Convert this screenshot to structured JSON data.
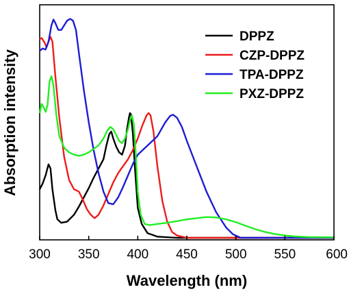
{
  "chart_data": {
    "type": "line",
    "title": "",
    "xlabel": "Wavelength (nm)",
    "ylabel": "Absorption intensity",
    "xlim": [
      300,
      600
    ],
    "ylim": [
      0,
      1
    ],
    "x_ticks": [
      300,
      350,
      400,
      450,
      500,
      550,
      600
    ],
    "y_ticks_shown": false,
    "grid": false,
    "legend_position": "top-right",
    "series": [
      {
        "name": "DPPZ",
        "color": "#000000",
        "points": [
          [
            300,
            0.21
          ],
          [
            303,
            0.235
          ],
          [
            306,
            0.27
          ],
          [
            309,
            0.318
          ],
          [
            311,
            0.3
          ],
          [
            313,
            0.21
          ],
          [
            316,
            0.12
          ],
          [
            318,
            0.08
          ],
          [
            322,
            0.065
          ],
          [
            328,
            0.07
          ],
          [
            335,
            0.1
          ],
          [
            340,
            0.135
          ],
          [
            345,
            0.175
          ],
          [
            350,
            0.215
          ],
          [
            355,
            0.26
          ],
          [
            360,
            0.3
          ],
          [
            365,
            0.34
          ],
          [
            368,
            0.4
          ],
          [
            371,
            0.45
          ],
          [
            373,
            0.46
          ],
          [
            375,
            0.43
          ],
          [
            378,
            0.395
          ],
          [
            381,
            0.37
          ],
          [
            384,
            0.36
          ],
          [
            387,
            0.4
          ],
          [
            389,
            0.47
          ],
          [
            391,
            0.52
          ],
          [
            392,
            0.54
          ],
          [
            393,
            0.535
          ],
          [
            395,
            0.45
          ],
          [
            397,
            0.31
          ],
          [
            400,
            0.13
          ],
          [
            404,
            0.06
          ],
          [
            410,
            0.02
          ],
          [
            420,
            0.005
          ],
          [
            440,
            0.0
          ],
          [
            600,
            0.0
          ]
        ]
      },
      {
        "name": "CZP-DPPZ",
        "color": "#ee1c1c",
        "points": [
          [
            300,
            0.86
          ],
          [
            302,
            0.865
          ],
          [
            305,
            0.845
          ],
          [
            307,
            0.825
          ],
          [
            309,
            0.85
          ],
          [
            311,
            0.87
          ],
          [
            313,
            0.85
          ],
          [
            316,
            0.7
          ],
          [
            320,
            0.52
          ],
          [
            325,
            0.35
          ],
          [
            330,
            0.25
          ],
          [
            335,
            0.21
          ],
          [
            340,
            0.2
          ],
          [
            344,
            0.165
          ],
          [
            348,
            0.125
          ],
          [
            352,
            0.1
          ],
          [
            356,
            0.085
          ],
          [
            360,
            0.1
          ],
          [
            365,
            0.14
          ],
          [
            370,
            0.19
          ],
          [
            375,
            0.24
          ],
          [
            380,
            0.28
          ],
          [
            385,
            0.31
          ],
          [
            390,
            0.34
          ],
          [
            395,
            0.38
          ],
          [
            400,
            0.43
          ],
          [
            405,
            0.49
          ],
          [
            409,
            0.53
          ],
          [
            411,
            0.54
          ],
          [
            413,
            0.53
          ],
          [
            416,
            0.46
          ],
          [
            420,
            0.31
          ],
          [
            425,
            0.16
          ],
          [
            430,
            0.07
          ],
          [
            435,
            0.025
          ],
          [
            440,
            0.01
          ],
          [
            450,
            0.0
          ],
          [
            600,
            0.0
          ]
        ]
      },
      {
        "name": "TPA-DPPZ",
        "color": "#1c1cd6",
        "points": [
          [
            300,
            0.81
          ],
          [
            303,
            0.82
          ],
          [
            306,
            0.815
          ],
          [
            309,
            0.85
          ],
          [
            312,
            0.92
          ],
          [
            314,
            0.945
          ],
          [
            316,
            0.93
          ],
          [
            319,
            0.9
          ],
          [
            322,
            0.9
          ],
          [
            325,
            0.92
          ],
          [
            328,
            0.94
          ],
          [
            331,
            0.948
          ],
          [
            334,
            0.94
          ],
          [
            337,
            0.9
          ],
          [
            340,
            0.8
          ],
          [
            345,
            0.64
          ],
          [
            350,
            0.5
          ],
          [
            355,
            0.38
          ],
          [
            360,
            0.28
          ],
          [
            365,
            0.2
          ],
          [
            370,
            0.15
          ],
          [
            375,
            0.145
          ],
          [
            380,
            0.175
          ],
          [
            385,
            0.22
          ],
          [
            390,
            0.27
          ],
          [
            395,
            0.32
          ],
          [
            400,
            0.36
          ],
          [
            410,
            0.4
          ],
          [
            420,
            0.44
          ],
          [
            428,
            0.5
          ],
          [
            433,
            0.528
          ],
          [
            436,
            0.533
          ],
          [
            440,
            0.52
          ],
          [
            445,
            0.48
          ],
          [
            450,
            0.42
          ],
          [
            460,
            0.31
          ],
          [
            470,
            0.2
          ],
          [
            480,
            0.11
          ],
          [
            490,
            0.045
          ],
          [
            497,
            0.015
          ],
          [
            505,
            0.0
          ],
          [
            600,
            0.0
          ]
        ]
      },
      {
        "name": "PXZ-DPPZ",
        "color": "#22ee22",
        "points": [
          [
            300,
            0.54
          ],
          [
            302,
            0.58
          ],
          [
            304,
            0.565
          ],
          [
            306,
            0.545
          ],
          [
            308,
            0.575
          ],
          [
            310,
            0.675
          ],
          [
            312,
            0.7
          ],
          [
            314,
            0.66
          ],
          [
            317,
            0.53
          ],
          [
            320,
            0.44
          ],
          [
            325,
            0.39
          ],
          [
            330,
            0.37
          ],
          [
            335,
            0.36
          ],
          [
            340,
            0.355
          ],
          [
            345,
            0.36
          ],
          [
            350,
            0.37
          ],
          [
            355,
            0.385
          ],
          [
            360,
            0.4
          ],
          [
            365,
            0.43
          ],
          [
            369,
            0.465
          ],
          [
            372,
            0.48
          ],
          [
            375,
            0.47
          ],
          [
            378,
            0.445
          ],
          [
            381,
            0.42
          ],
          [
            384,
            0.41
          ],
          [
            387,
            0.43
          ],
          [
            390,
            0.47
          ],
          [
            392,
            0.51
          ],
          [
            394,
            0.53
          ],
          [
            396,
            0.49
          ],
          [
            398,
            0.36
          ],
          [
            400,
            0.2
          ],
          [
            403,
            0.1
          ],
          [
            407,
            0.06
          ],
          [
            412,
            0.055
          ],
          [
            420,
            0.06
          ],
          [
            430,
            0.065
          ],
          [
            440,
            0.072
          ],
          [
            450,
            0.08
          ],
          [
            460,
            0.085
          ],
          [
            470,
            0.09
          ],
          [
            480,
            0.088
          ],
          [
            490,
            0.08
          ],
          [
            500,
            0.068
          ],
          [
            510,
            0.052
          ],
          [
            520,
            0.037
          ],
          [
            530,
            0.025
          ],
          [
            540,
            0.016
          ],
          [
            550,
            0.01
          ],
          [
            560,
            0.006
          ],
          [
            575,
            0.003
          ],
          [
            600,
            0.002
          ]
        ]
      }
    ]
  }
}
